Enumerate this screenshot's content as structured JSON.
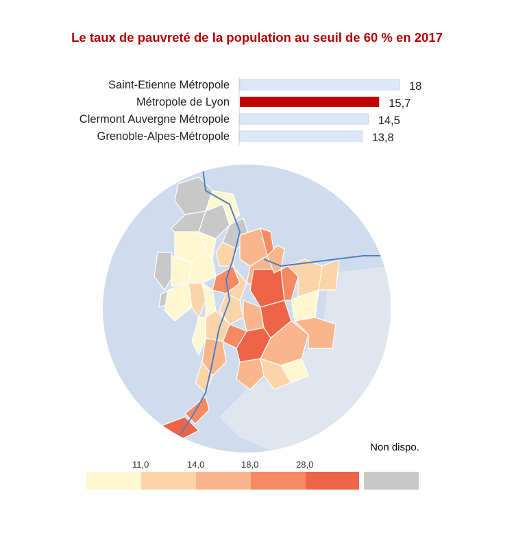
{
  "title": "Le taux de pauvreté de la population au seuil de 60 % en 2017",
  "chart_data": {
    "type": "bar",
    "orientation": "horizontal",
    "title": "Le taux de pauvreté de la population au seuil de 60 % en 2017",
    "categories": [
      "Saint-Etienne Métropole",
      "Métropole de Lyon",
      "Clermont Auvergne Métropole",
      "Grenoble-Alpes-Métropole"
    ],
    "values": [
      18,
      15.7,
      14.5,
      13.8
    ],
    "value_labels": [
      "18",
      "15,7",
      "14,5",
      "13,8"
    ],
    "xlim": [
      0,
      18
    ],
    "highlight": "Métropole de Lyon",
    "colors": {
      "default": "#dde8f7",
      "default_border": "#c5d6ee",
      "highlight": "#c00000"
    }
  },
  "legend": {
    "ticks": [
      "11,0",
      "14,0",
      "18,0",
      "28,0"
    ],
    "bins": [
      "#fff7cf",
      "#fbd5a8",
      "#f9b68c",
      "#f68a62",
      "#ee6446"
    ],
    "nodata_color": "#c8c8c8",
    "nodata_label": "Non dispo."
  },
  "map": {
    "water_color": "#cfdced",
    "land_color": "#e6e6e6",
    "river_color": "#4a80c8"
  }
}
